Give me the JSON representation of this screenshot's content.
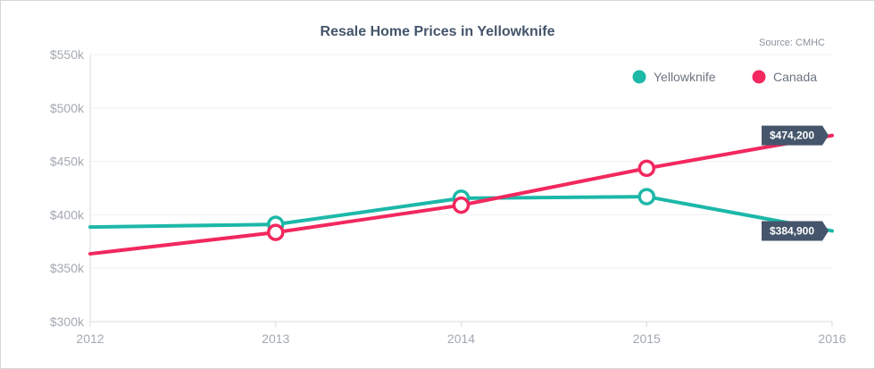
{
  "chart_data": {
    "type": "line",
    "title": "Resale Home Prices in Yellowknife",
    "source": "Source: CMHC",
    "x": [
      "2012",
      "2013",
      "2014",
      "2015",
      "2016"
    ],
    "ylim": [
      300000,
      550000
    ],
    "y_ticks": [
      300000,
      350000,
      400000,
      450000,
      500000,
      550000
    ],
    "y_tick_labels": [
      "$300k",
      "$350k",
      "$400k",
      "$450k",
      "$500k",
      "$550k"
    ],
    "grid": true,
    "legend_position": "top-right",
    "series": [
      {
        "name": "Yellowknife",
        "color": "#1cb8a8",
        "values": [
          388500,
          391000,
          415500,
          417000,
          384900
        ],
        "end_label": "$384,900"
      },
      {
        "name": "Canada",
        "color": "#f2285e",
        "values": [
          363500,
          383500,
          409000,
          443500,
          474200
        ],
        "end_label": "$474,200"
      }
    ]
  }
}
